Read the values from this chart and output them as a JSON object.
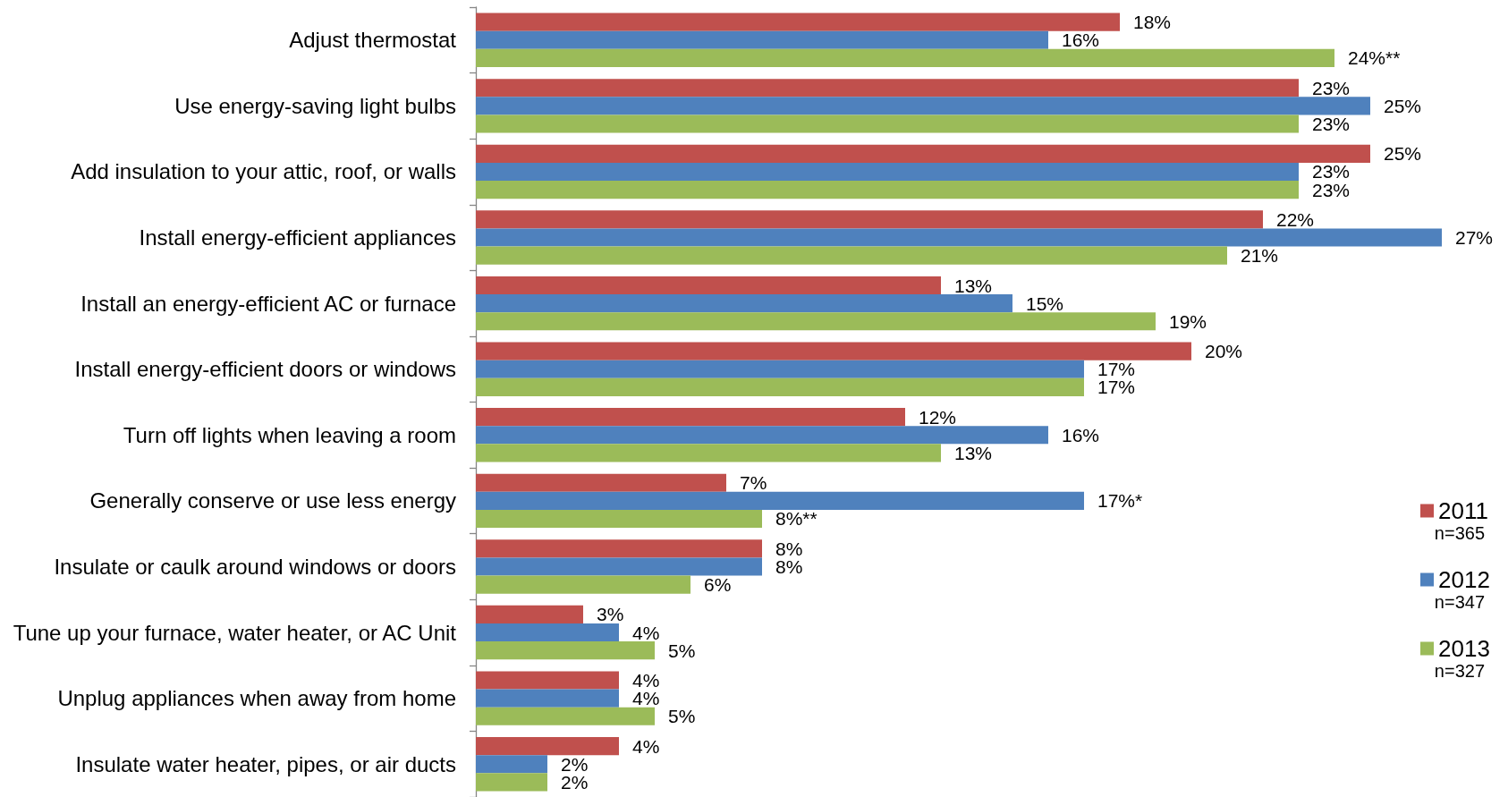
{
  "chart_data": {
    "type": "bar",
    "orientation": "horizontal",
    "legend": "right",
    "categories": [
      "Adjust thermostat",
      "Use energy-saving light bulbs",
      "Add insulation to your attic, roof, or walls",
      "Install energy-efficient appliances",
      "Install an energy-efficient AC or furnace",
      "Install energy-efficient doors or windows",
      "Turn off lights when leaving a room",
      "Generally conserve or use less energy",
      "Insulate or caulk around windows or doors",
      "Tune up your furnace, water heater, or AC Unit",
      "Unplug appliances when away from home",
      "Insulate water heater, pipes, or air ducts"
    ],
    "series": [
      {
        "name": "2011",
        "color": "#c0504d",
        "values": [
          18,
          23,
          25,
          22,
          13,
          20,
          12,
          7,
          8,
          3,
          4,
          4
        ],
        "value_labels": [
          "18%",
          "23%",
          "25%",
          "22%",
          "13%",
          "20%",
          "12%",
          "7%",
          "8%",
          "3%",
          "4%",
          "4%"
        ]
      },
      {
        "name": "2012",
        "color": "#4f81bd",
        "values": [
          16,
          25,
          23,
          27,
          15,
          17,
          16,
          17,
          8,
          4,
          4,
          2
        ],
        "value_labels": [
          "16%",
          "25%",
          "23%",
          "27%",
          "15%",
          "17%",
          "16%",
          "17%*",
          "8%",
          "4%",
          "4%",
          "2%"
        ]
      },
      {
        "name": "2013",
        "color": "#9bbb59",
        "values": [
          24,
          23,
          23,
          21,
          19,
          17,
          13,
          8,
          6,
          5,
          5,
          2
        ],
        "value_labels": [
          "24%**",
          "23%",
          "23%",
          "21%",
          "19%",
          "17%",
          "13%",
          "8%**",
          "6%",
          "5%",
          "5%",
          "2%"
        ]
      }
    ],
    "annotations": [
      "n=365",
      "n=347",
      "n=327"
    ]
  }
}
